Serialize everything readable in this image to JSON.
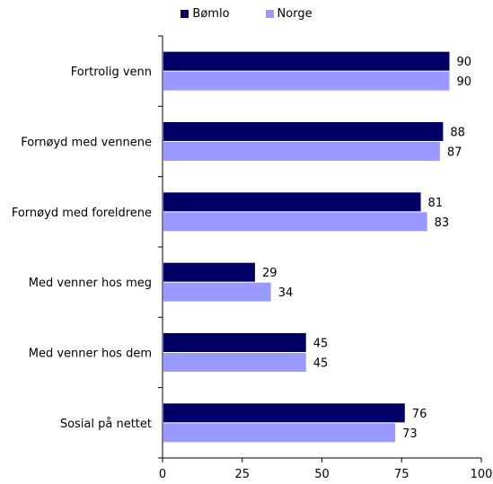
{
  "chart_data": {
    "type": "bar",
    "orientation": "horizontal",
    "categories": [
      "Fortrolig venn",
      "Fornøyd med vennene",
      "Fornøyd med foreldrene",
      "Med venner hos meg",
      "Med venner hos dem",
      "Sosial på nettet"
    ],
    "series": [
      {
        "name": "Bømlo",
        "values": [
          90,
          88,
          81,
          29,
          45,
          76
        ],
        "color": "#000066"
      },
      {
        "name": "Norge",
        "values": [
          90,
          87,
          83,
          34,
          45,
          73
        ],
        "color": "#9999ff"
      }
    ],
    "xlim": [
      0,
      100
    ],
    "xticks": [
      0,
      25,
      50,
      75,
      100
    ],
    "legend": "top-center",
    "grid": false,
    "title": "",
    "xlabel": "",
    "ylabel": ""
  }
}
